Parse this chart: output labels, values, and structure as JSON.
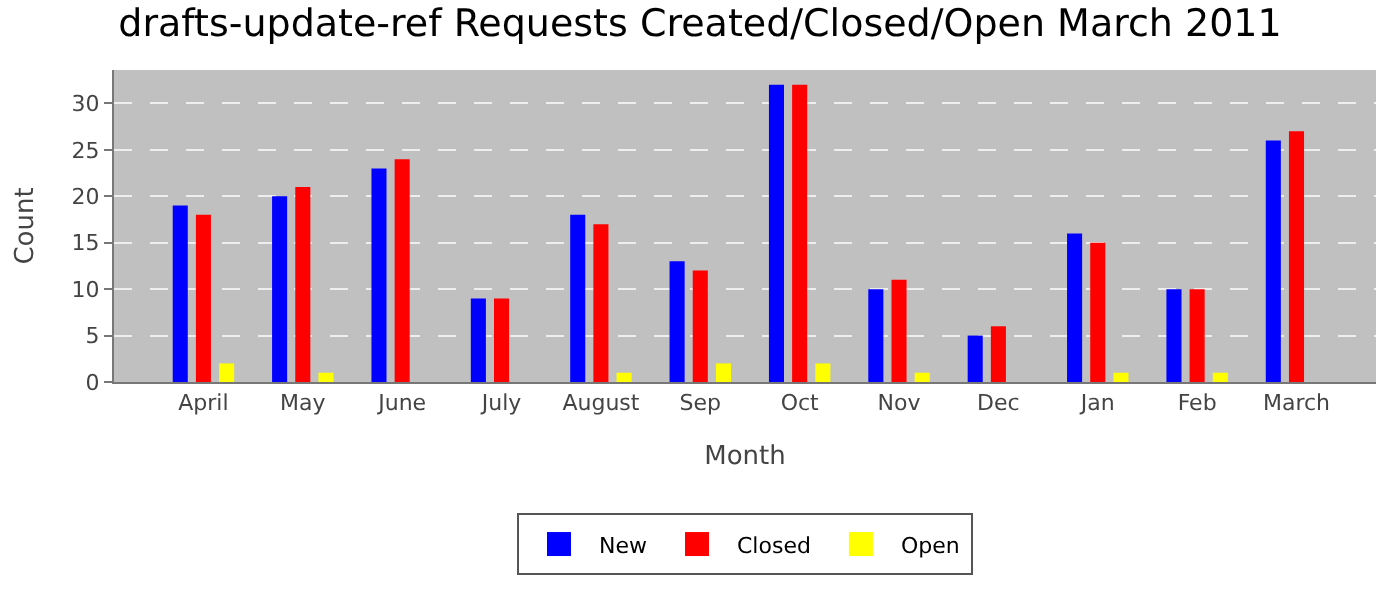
{
  "chart_data": {
    "type": "bar",
    "title": "drafts-update-ref Requests Created/Closed/Open March 2011",
    "xlabel": "Month",
    "ylabel": "Count",
    "categories": [
      "April",
      "May",
      "June",
      "July",
      "August",
      "Sep",
      "Oct",
      "Nov",
      "Dec",
      "Jan",
      "Feb",
      "March"
    ],
    "series": [
      {
        "name": "New",
        "color": "#0000ff",
        "values": [
          19,
          20,
          23,
          9,
          18,
          13,
          32,
          10,
          5,
          16,
          10,
          26
        ]
      },
      {
        "name": "Closed",
        "color": "#ff0000",
        "values": [
          18,
          21,
          24,
          9,
          17,
          12,
          32,
          11,
          6,
          15,
          10,
          27
        ]
      },
      {
        "name": "Open",
        "color": "#ffff00",
        "values": [
          2,
          1,
          0,
          0,
          1,
          2,
          2,
          1,
          0,
          1,
          1,
          0
        ]
      }
    ],
    "ylim": [
      0,
      33.6
    ],
    "yticks": [
      0,
      5,
      10,
      15,
      20,
      25,
      30
    ],
    "grid": "y",
    "legend": "bottom"
  }
}
